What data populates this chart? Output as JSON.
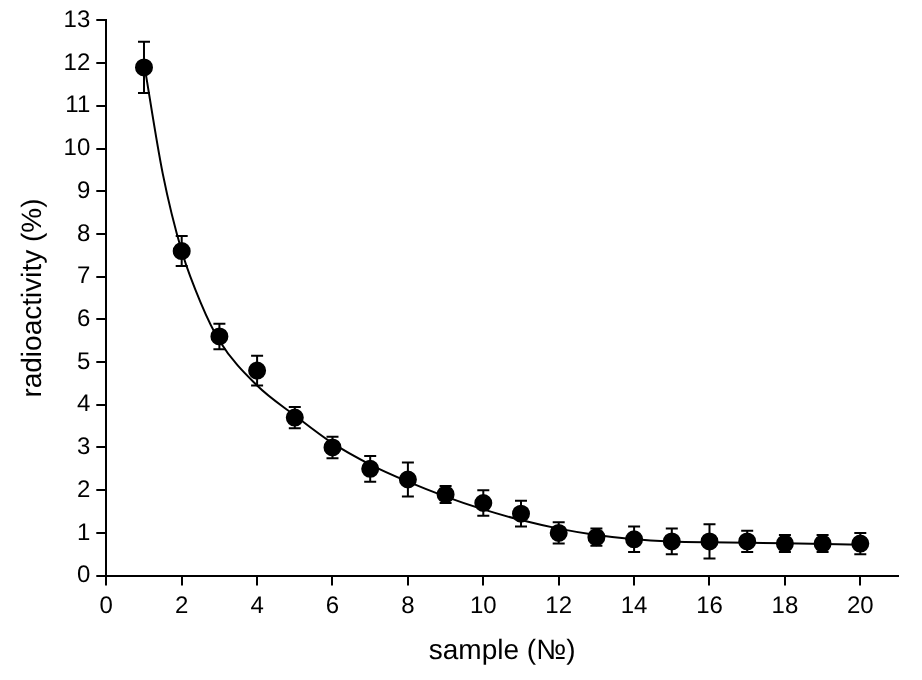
{
  "chart_data": {
    "type": "scatter",
    "xlabel": "sample (№)",
    "ylabel": "radioactivity (%)",
    "xlim": [
      0,
      21
    ],
    "xticks": [
      0,
      2,
      4,
      6,
      8,
      10,
      12,
      14,
      16,
      18,
      20
    ],
    "ylim": [
      0,
      13
    ],
    "yticks": [
      0,
      1,
      2,
      3,
      4,
      5,
      6,
      7,
      8,
      9,
      10,
      11,
      12,
      13
    ],
    "grid": false,
    "legend": false,
    "marker": "circle",
    "series": [
      {
        "type": "scatter",
        "color": "#000000",
        "x": [
          1,
          2,
          3,
          4,
          5,
          6,
          7,
          8,
          9,
          10,
          11,
          12,
          13,
          14,
          15,
          16,
          17,
          18,
          19,
          20
        ],
        "values": [
          11.9,
          7.6,
          5.6,
          4.8,
          3.7,
          3.0,
          2.5,
          2.25,
          1.9,
          1.7,
          1.45,
          1.0,
          0.9,
          0.85,
          0.8,
          0.8,
          0.8,
          0.75,
          0.75,
          0.75
        ],
        "errors": [
          0.6,
          0.35,
          0.3,
          0.35,
          0.25,
          0.25,
          0.3,
          0.4,
          0.2,
          0.3,
          0.3,
          0.25,
          0.2,
          0.3,
          0.3,
          0.4,
          0.25,
          0.2,
          0.2,
          0.25
        ]
      },
      {
        "type": "line",
        "color": "#000000",
        "marker": "none",
        "line_style": "solid",
        "x": [
          1,
          1.5,
          2,
          2.5,
          3,
          4,
          5,
          6,
          7,
          8,
          9,
          10,
          11,
          12,
          13,
          14,
          15,
          16,
          18,
          20
        ],
        "values": [
          12.0,
          9.4,
          7.6,
          6.4,
          5.5,
          4.45,
          3.75,
          3.1,
          2.6,
          2.2,
          1.85,
          1.55,
          1.3,
          1.1,
          0.95,
          0.85,
          0.8,
          0.78,
          0.76,
          0.72
        ]
      }
    ]
  }
}
